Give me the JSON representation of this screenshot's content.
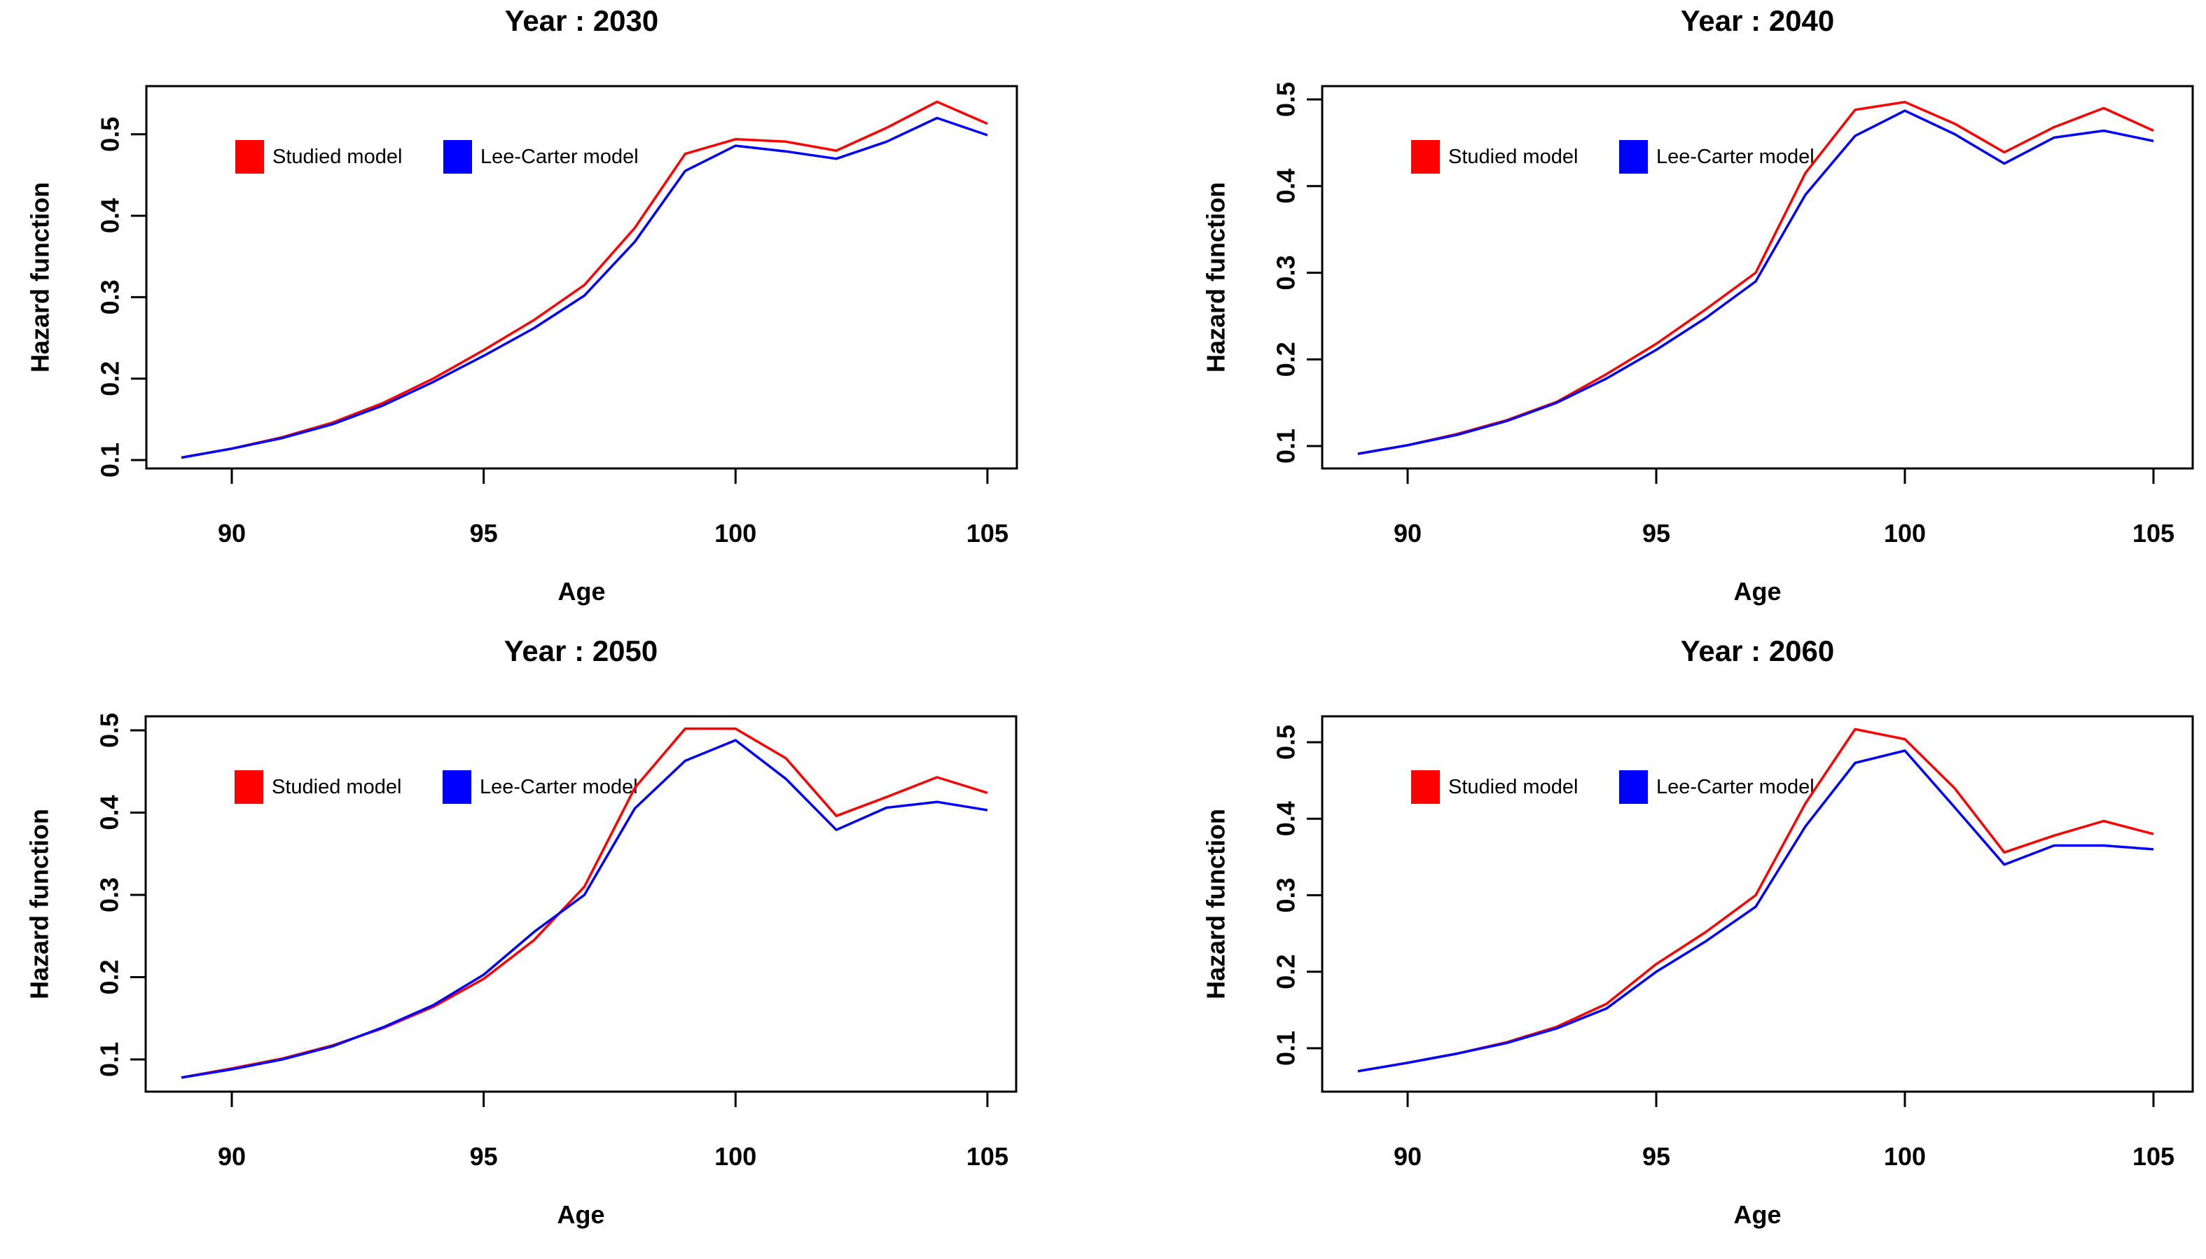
{
  "figure": {
    "background": "#ffffff",
    "xlabel": "Age",
    "ylabel": "Hazard function",
    "legend": {
      "studied_label": "Studied model",
      "lee_carter_label": "Lee-Carter model"
    },
    "colors": {
      "studied": "#ff0000",
      "lee_carter": "#0000ff",
      "axis": "#000000"
    }
  },
  "chart_data": [
    {
      "type": "line",
      "title": "Year : 2030",
      "xlabel": "Age",
      "ylabel": "Hazard function",
      "x": [
        89,
        90,
        91,
        92,
        93,
        94,
        95,
        96,
        97,
        98,
        99,
        100,
        101,
        102,
        103,
        104,
        105
      ],
      "xticks": [
        90,
        95,
        100,
        105
      ],
      "xticklabels": [
        "90",
        "95",
        "100",
        "105"
      ],
      "yticks": [
        0.1,
        0.2,
        0.3,
        0.4,
        0.5
      ],
      "yticklabels": [
        "0.1",
        "0.2",
        "0.3",
        "0.4",
        "0.5"
      ],
      "xlim": [
        88.3,
        105.6
      ],
      "ylim": [
        0.089,
        0.559
      ],
      "grid": false,
      "legend_position": "top-left",
      "series": [
        {
          "name": "Studied model",
          "color": "#ff0000",
          "values": [
            0.103,
            0.114,
            0.128,
            0.146,
            0.17,
            0.2,
            0.235,
            0.272,
            0.315,
            0.385,
            0.476,
            0.494,
            0.491,
            0.48,
            0.508,
            0.54,
            0.513
          ]
        },
        {
          "name": "Lee-Carter model",
          "color": "#0000ff",
          "values": [
            0.103,
            0.114,
            0.127,
            0.144,
            0.167,
            0.196,
            0.228,
            0.262,
            0.302,
            0.368,
            0.455,
            0.486,
            0.479,
            0.47,
            0.491,
            0.52,
            0.499
          ]
        }
      ]
    },
    {
      "type": "line",
      "title": "Year : 2040",
      "xlabel": "Age",
      "ylabel": "Hazard function",
      "x": [
        89,
        90,
        91,
        92,
        93,
        94,
        95,
        96,
        97,
        98,
        99,
        100,
        101,
        102,
        103,
        104,
        105
      ],
      "xticks": [
        90,
        95,
        100,
        105
      ],
      "xticklabels": [
        "90",
        "95",
        "100",
        "105"
      ],
      "yticks": [
        0.1,
        0.2,
        0.3,
        0.4,
        0.5
      ],
      "yticklabels": [
        "0.1",
        "0.2",
        "0.3",
        "0.4",
        "0.5"
      ],
      "xlim": [
        88.3,
        105.6
      ],
      "ylim": [
        0.075,
        0.513
      ],
      "grid": false,
      "legend_position": "top-left",
      "series": [
        {
          "name": "Studied model",
          "color": "#ff0000",
          "values": [
            0.091,
            0.101,
            0.114,
            0.13,
            0.151,
            0.183,
            0.218,
            0.258,
            0.3,
            0.415,
            0.488,
            0.497,
            0.472,
            0.439,
            0.468,
            0.49,
            0.464
          ]
        },
        {
          "name": "Lee-Carter model",
          "color": "#0000ff",
          "values": [
            0.091,
            0.101,
            0.113,
            0.129,
            0.15,
            0.178,
            0.211,
            0.248,
            0.29,
            0.39,
            0.458,
            0.487,
            0.46,
            0.426,
            0.456,
            0.464,
            0.452
          ]
        }
      ]
    },
    {
      "type": "line",
      "title": "Year : 2050",
      "xlabel": "Age",
      "ylabel": "Hazard function",
      "x": [
        89,
        90,
        91,
        92,
        93,
        94,
        95,
        96,
        97,
        98,
        99,
        100,
        101,
        102,
        103,
        104,
        105
      ],
      "xticks": [
        90,
        95,
        100,
        105
      ],
      "xticklabels": [
        "90",
        "95",
        "100",
        "105"
      ],
      "yticks": [
        0.1,
        0.2,
        0.3,
        0.4,
        0.5
      ],
      "yticklabels": [
        "0.1",
        "0.2",
        "0.3",
        "0.4",
        "0.5"
      ],
      "xlim": [
        88.3,
        105.6
      ],
      "ylim": [
        0.061,
        0.519
      ],
      "grid": false,
      "legend_position": "top-left",
      "series": [
        {
          "name": "Studied model",
          "color": "#ff0000",
          "values": [
            0.078,
            0.089,
            0.101,
            0.117,
            0.138,
            0.164,
            0.198,
            0.245,
            0.31,
            0.43,
            0.502,
            0.502,
            0.466,
            0.396,
            0.419,
            0.443,
            0.424
          ]
        },
        {
          "name": "Lee-Carter model",
          "color": "#0000ff",
          "values": [
            0.078,
            0.088,
            0.1,
            0.116,
            0.139,
            0.166,
            0.203,
            0.255,
            0.3,
            0.405,
            0.463,
            0.488,
            0.441,
            0.379,
            0.406,
            0.413,
            0.403
          ]
        }
      ]
    },
    {
      "type": "line",
      "title": "Year : 2060",
      "xlabel": "Age",
      "ylabel": "Hazard function",
      "x": [
        89,
        90,
        91,
        92,
        93,
        94,
        95,
        96,
        97,
        98,
        99,
        100,
        101,
        102,
        103,
        104,
        105
      ],
      "xticks": [
        90,
        95,
        100,
        105
      ],
      "xticklabels": [
        "90",
        "95",
        "100",
        "105"
      ],
      "yticks": [
        0.1,
        0.2,
        0.3,
        0.4,
        0.5
      ],
      "yticklabels": [
        "0.1",
        "0.2",
        "0.3",
        "0.4",
        "0.5"
      ],
      "xlim": [
        88.3,
        105.6
      ],
      "ylim": [
        0.052,
        0.533
      ],
      "grid": false,
      "legend_position": "top-left",
      "series": [
        {
          "name": "Studied model",
          "color": "#ff0000",
          "values": [
            0.07,
            0.081,
            0.093,
            0.108,
            0.128,
            0.158,
            0.21,
            0.252,
            0.3,
            0.42,
            0.517,
            0.504,
            0.44,
            0.356,
            0.378,
            0.397,
            0.38
          ]
        },
        {
          "name": "Lee-Carter model",
          "color": "#0000ff",
          "values": [
            0.07,
            0.081,
            0.093,
            0.107,
            0.126,
            0.152,
            0.2,
            0.24,
            0.285,
            0.39,
            0.473,
            0.489,
            0.415,
            0.34,
            0.365,
            0.365,
            0.36
          ]
        }
      ]
    }
  ]
}
